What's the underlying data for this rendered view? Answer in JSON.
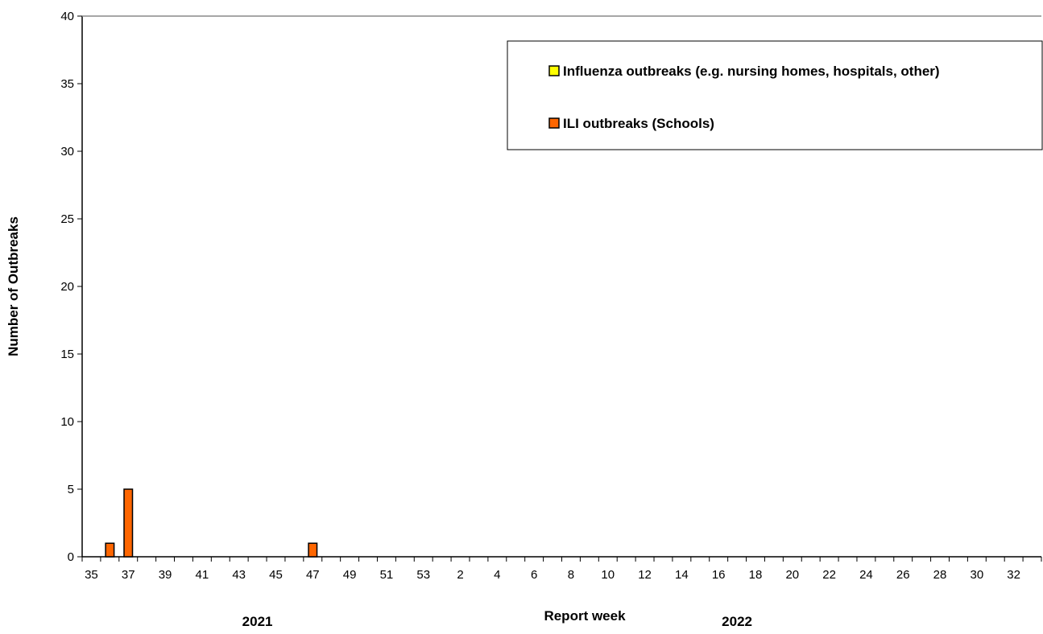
{
  "chart_data": {
    "type": "bar",
    "xlabel": "Report week",
    "ylabel": "Number of Outbreaks",
    "ylim": [
      0,
      40
    ],
    "yticks": [
      0,
      5,
      10,
      15,
      20,
      25,
      30,
      35,
      40
    ],
    "grid": false,
    "legend_position": "top-right",
    "categories": [
      "35",
      "36",
      "37",
      "38",
      "39",
      "40",
      "41",
      "42",
      "43",
      "44",
      "45",
      "46",
      "47",
      "48",
      "49",
      "50",
      "51",
      "52",
      "53",
      "1",
      "2",
      "3",
      "4",
      "5",
      "6",
      "7",
      "8",
      "9",
      "10",
      "11",
      "12",
      "13",
      "14",
      "15",
      "16",
      "17",
      "18",
      "19",
      "20",
      "21",
      "22",
      "23",
      "24",
      "25",
      "26",
      "27",
      "28",
      "29",
      "30",
      "31",
      "32",
      "33"
    ],
    "tick_labels": [
      "35",
      "37",
      "39",
      "41",
      "43",
      "45",
      "47",
      "49",
      "51",
      "53",
      "2",
      "4",
      "6",
      "8",
      "10",
      "12",
      "14",
      "16",
      "18",
      "20",
      "22",
      "24",
      "26",
      "28",
      "30",
      "32"
    ],
    "year_labels": [
      {
        "label": "2021",
        "from_category": 0,
        "to_category": 18
      },
      {
        "label": "2022",
        "from_category": 19,
        "to_category": 51
      }
    ],
    "series": [
      {
        "name": "Influenza outbreaks (e.g. nursing homes, hospitals, other)",
        "color": "#FFFF00",
        "values": [
          0,
          0,
          0,
          0,
          0,
          0,
          0,
          0,
          0,
          0,
          0,
          0,
          0,
          0,
          0,
          0,
          0,
          0,
          0,
          0,
          0,
          0,
          0,
          0,
          0,
          0,
          0,
          0,
          0,
          0,
          0,
          0,
          0,
          0,
          0,
          0,
          0,
          0,
          0,
          0,
          0,
          0,
          0,
          0,
          0,
          0,
          0,
          0,
          0,
          0,
          0,
          0
        ]
      },
      {
        "name": "ILI outbreaks (Schools)",
        "color": "#FF6600",
        "values": [
          0,
          1,
          5,
          0,
          0,
          0,
          0,
          0,
          0,
          0,
          0,
          0,
          1,
          0,
          0,
          0,
          0,
          0,
          0,
          0,
          0,
          0,
          0,
          0,
          0,
          0,
          0,
          0,
          0,
          0,
          0,
          0,
          0,
          0,
          0,
          0,
          0,
          0,
          0,
          0,
          0,
          0,
          0,
          0,
          0,
          0,
          0,
          0,
          0,
          0,
          0,
          0
        ]
      }
    ]
  }
}
